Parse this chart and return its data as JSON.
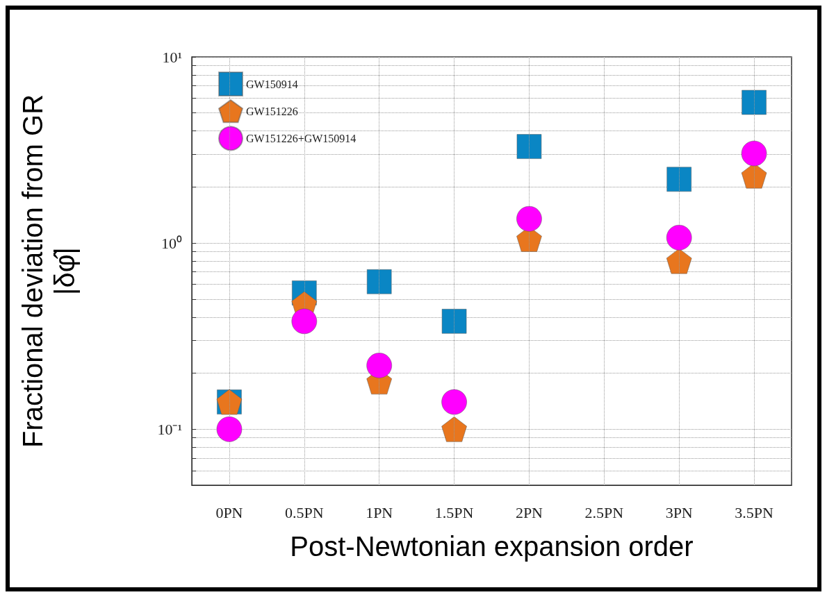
{
  "chart_data": {
    "type": "scatter",
    "xlabel": "Post-Newtonian expansion order",
    "ylabel": "Fractional deviation from GR\n|δφ̂|",
    "categories": [
      "0PN",
      "0.5PN",
      "1PN",
      "1.5PN",
      "2PN",
      "2.5PN",
      "3PN",
      "3.5PN"
    ],
    "series": [
      {
        "name": "GW150914",
        "color": "#0a86c4",
        "marker": "square",
        "values": [
          0.14,
          0.54,
          0.62,
          0.38,
          3.3,
          null,
          2.2,
          5.7
        ]
      },
      {
        "name": "GW151226",
        "color": "#e8761e",
        "values": [
          0.14,
          0.47,
          0.18,
          0.1,
          1.05,
          null,
          0.8,
          2.3
        ]
      },
      {
        "name": "GW151226+GW150914",
        "color": "#ff00ff",
        "marker": "circle",
        "values": [
          0.1,
          0.38,
          0.22,
          0.14,
          1.35,
          null,
          1.07,
          3.03
        ]
      }
    ],
    "log": "y",
    "ylim": [
      0.05,
      10
    ],
    "yticks": [
      {
        "value": 0.05,
        "label": null
      },
      {
        "value": 0.06,
        "label": null
      },
      {
        "value": 0.07,
        "label": null
      },
      {
        "value": 0.08,
        "label": null
      },
      {
        "value": 0.09,
        "label": null
      },
      {
        "value": 0.1,
        "label": "10⁻¹"
      },
      {
        "value": 0.2,
        "label": null
      },
      {
        "value": 0.3,
        "label": null
      },
      {
        "value": 0.4,
        "label": null
      },
      {
        "value": 0.5,
        "label": null
      },
      {
        "value": 0.6,
        "label": null
      },
      {
        "value": 0.7,
        "label": null
      },
      {
        "value": 0.8,
        "label": null
      },
      {
        "value": 0.9,
        "label": null
      },
      {
        "value": 1,
        "label": "10⁰"
      },
      {
        "value": 2,
        "label": null
      },
      {
        "value": 3,
        "label": null
      },
      {
        "value": 4,
        "label": null
      },
      {
        "value": 5,
        "label": null
      },
      {
        "value": 6,
        "label": null
      },
      {
        "value": 7,
        "label": null
      },
      {
        "value": 8,
        "label": null
      },
      {
        "value": 9,
        "label": null
      },
      {
        "value": 10,
        "label": "10¹"
      }
    ],
    "grid": true,
    "legend": "top left",
    "line_style": "dotted"
  }
}
